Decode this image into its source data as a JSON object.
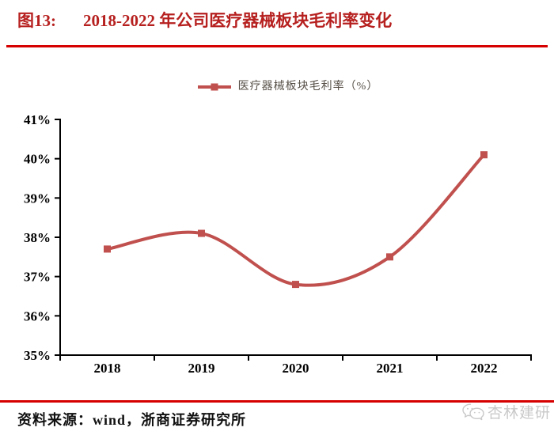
{
  "page": {
    "figure_label": "图13:",
    "title": "2018-2022 年公司医疗器械板块毛利率变化",
    "source_label": "资料来源：wind，浙商证券研究所",
    "watermark_text": "杏林建研"
  },
  "legend": {
    "label": "医疗器械板块毛利率（%）"
  },
  "colors": {
    "title_red": "#b6201f",
    "rule_red": "#d60000",
    "series_red": "#c0504d",
    "axis_black": "#000000",
    "legend_text": "#564f47",
    "watermark_gray": "#c9c9c9"
  },
  "chart_data": {
    "type": "line",
    "smooth": true,
    "marker": "square",
    "grid": false,
    "legend_position": "top",
    "title": "2018-2022 年公司医疗器械板块毛利率变化",
    "xlabel": "",
    "ylabel": "",
    "categories": [
      "2018",
      "2019",
      "2020",
      "2021",
      "2022"
    ],
    "series": [
      {
        "name": "医疗器械板块毛利率（%）",
        "values": [
          37.7,
          38.1,
          36.8,
          37.5,
          40.1
        ]
      }
    ],
    "ylim": [
      35,
      41
    ],
    "ytick_step": 1,
    "ytick_labels": [
      "35%",
      "36%",
      "37%",
      "38%",
      "39%",
      "40%",
      "41%"
    ]
  }
}
